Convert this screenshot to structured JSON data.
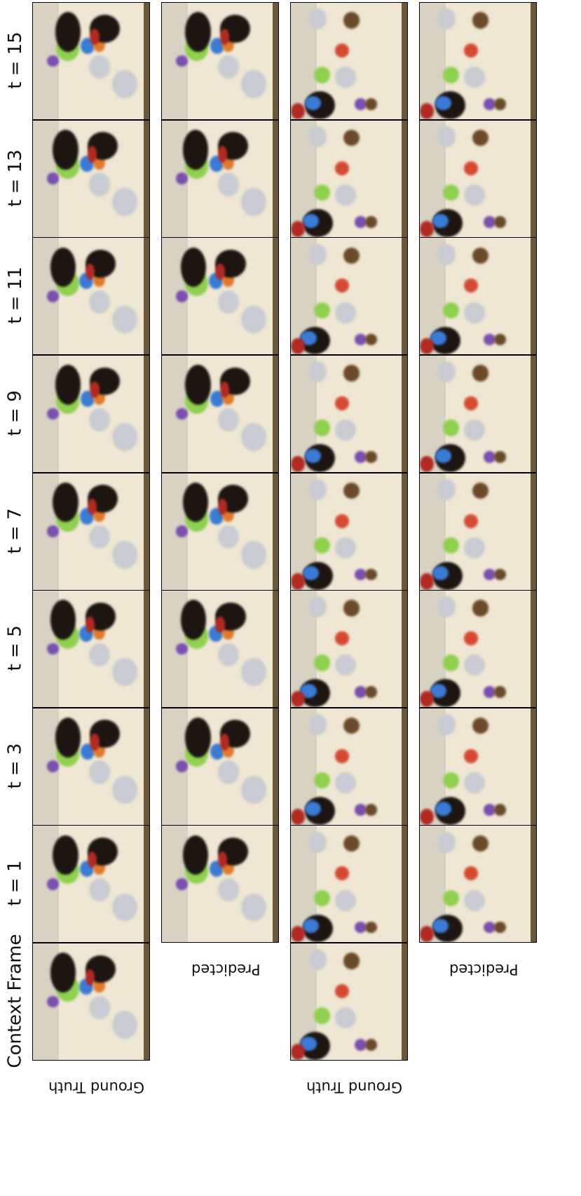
{
  "labels": {
    "context": "Context Frame",
    "timesteps": [
      "t = 1",
      "t = 3",
      "t = 5",
      "t = 7",
      "t = 9",
      "t = 11",
      "t = 13",
      "t = 15"
    ]
  },
  "rows": [
    {
      "label": "Ground Truth",
      "scene": "A",
      "has_context": true
    },
    {
      "label": "Predicted",
      "scene": "A",
      "has_context": false
    },
    {
      "label": "Ground Truth",
      "scene": "B",
      "has_context": true
    },
    {
      "label": "Predicted",
      "scene": "B",
      "has_context": false
    }
  ],
  "colors": {
    "wall": "#d8d2c2",
    "floor": "#efe7d3",
    "table_edge": "#6b5a3a",
    "robot_arm": "#1c1512",
    "robot_red": "#b12a22",
    "green_object": "#8fd14f",
    "blue_object": "#3a7bd5",
    "orange_object": "#e07a2b",
    "purple_object": "#7a4fb0",
    "red_spoon": "#d64a33",
    "silver_object": "#c9ccd2",
    "brown_object": "#6b4a2a"
  }
}
